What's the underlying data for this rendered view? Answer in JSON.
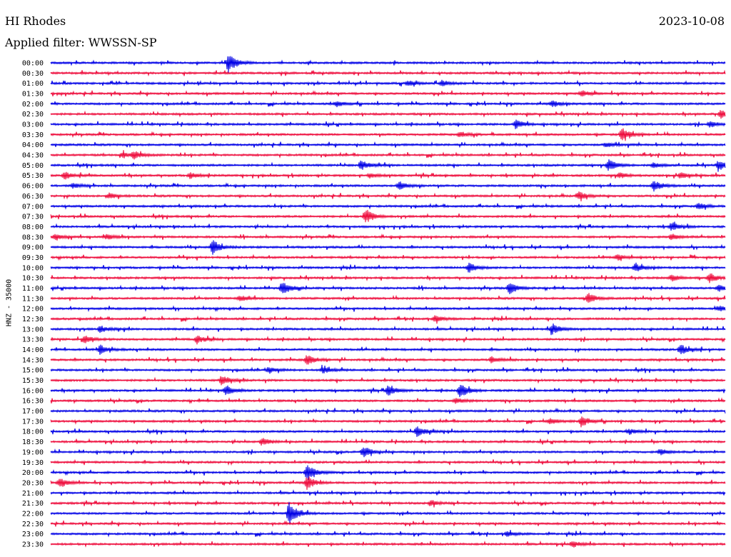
{
  "header": {
    "station": "HI Rhodes",
    "date": "2023-10-08",
    "filter": "Applied filter: WWSSN-SP"
  },
  "colors": {
    "trace_a": "#0000e6",
    "trace_b": "#ee0c3c",
    "background": "#ffffff",
    "text": "#000000"
  },
  "chart_data": {
    "type": "line",
    "subtype": "helicorder",
    "title": "HI Rhodes",
    "date": "2023-10-08",
    "filter": "WWSSN-SP",
    "ylabel": "HNZ - 35000",
    "xlabel": "",
    "line_minutes": 30,
    "color_cycle": [
      "#0000e6",
      "#ee0c3c"
    ],
    "y_ticks": [
      "00:00",
      "00:30",
      "01:00",
      "01:30",
      "02:00",
      "02:30",
      "03:00",
      "03:30",
      "04:00",
      "04:30",
      "05:00",
      "05:30",
      "06:00",
      "06:30",
      "07:00",
      "07:30",
      "08:00",
      "08:30",
      "09:00",
      "09:30",
      "10:00",
      "10:30",
      "11:00",
      "11:30",
      "12:00",
      "12:30",
      "13:00",
      "13:30",
      "14:00",
      "14:30",
      "15:00",
      "15:30",
      "16:00",
      "16:30",
      "17:00",
      "17:30",
      "18:00",
      "18:30",
      "19:00",
      "19:30",
      "20:00",
      "20:30",
      "21:00",
      "21:30",
      "22:00",
      "22:30",
      "23:00",
      "23:30"
    ],
    "series": [
      {
        "start": "00:00",
        "bursts": [
          [
            7.9,
            1.0
          ]
        ]
      },
      {
        "start": "00:30",
        "bursts": []
      },
      {
        "start": "01:00",
        "bursts": [
          [
            15.9,
            0.3
          ],
          [
            17.4,
            0.3
          ]
        ]
      },
      {
        "start": "01:30",
        "bursts": [
          [
            23.6,
            0.3
          ]
        ]
      },
      {
        "start": "02:00",
        "bursts": [
          [
            12.7,
            0.3
          ],
          [
            22.3,
            0.35
          ]
        ]
      },
      {
        "start": "02:30",
        "bursts": [
          [
            29.8,
            0.4
          ]
        ]
      },
      {
        "start": "03:00",
        "bursts": [
          [
            20.7,
            0.45
          ],
          [
            29.3,
            0.3
          ]
        ]
      },
      {
        "start": "03:30",
        "bursts": [
          [
            25.4,
            0.7
          ],
          [
            18.2,
            0.3
          ]
        ]
      },
      {
        "start": "04:00",
        "bursts": [
          [
            24.7,
            0.25
          ]
        ]
      },
      {
        "start": "04:30",
        "bursts": [
          [
            3.7,
            0.4
          ],
          [
            3.2,
            0.25
          ]
        ]
      },
      {
        "start": "05:00",
        "bursts": [
          [
            13.8,
            0.5
          ],
          [
            24.8,
            0.6
          ],
          [
            29.7,
            0.55
          ],
          [
            26.8,
            0.3
          ]
        ]
      },
      {
        "start": "05:30",
        "bursts": [
          [
            0.6,
            0.4
          ],
          [
            6.2,
            0.3
          ],
          [
            14.2,
            0.25
          ],
          [
            25.3,
            0.3
          ],
          [
            28.0,
            0.3
          ]
        ]
      },
      {
        "start": "06:00",
        "bursts": [
          [
            15.5,
            0.45
          ],
          [
            26.8,
            0.6
          ],
          [
            1.0,
            0.3
          ]
        ]
      },
      {
        "start": "06:30",
        "bursts": [
          [
            23.5,
            0.45
          ],
          [
            2.6,
            0.3
          ]
        ]
      },
      {
        "start": "07:00",
        "bursts": [
          [
            28.8,
            0.35
          ]
        ]
      },
      {
        "start": "07:30",
        "bursts": [
          [
            14.0,
            0.8
          ]
        ]
      },
      {
        "start": "08:00",
        "bursts": [
          [
            27.6,
            0.45
          ]
        ]
      },
      {
        "start": "08:30",
        "bursts": [
          [
            0.2,
            0.3
          ],
          [
            2.5,
            0.25
          ],
          [
            27.6,
            0.3
          ]
        ]
      },
      {
        "start": "09:00",
        "bursts": [
          [
            7.2,
            0.75
          ]
        ]
      },
      {
        "start": "09:30",
        "bursts": [
          [
            25.2,
            0.3
          ]
        ]
      },
      {
        "start": "10:00",
        "bursts": [
          [
            18.6,
            0.5
          ],
          [
            26.0,
            0.4
          ]
        ]
      },
      {
        "start": "10:30",
        "bursts": [
          [
            27.6,
            0.35
          ],
          [
            29.3,
            0.5
          ]
        ]
      },
      {
        "start": "11:00",
        "bursts": [
          [
            10.3,
            0.75
          ],
          [
            20.4,
            0.55
          ],
          [
            29.7,
            0.35
          ]
        ]
      },
      {
        "start": "11:30",
        "bursts": [
          [
            8.4,
            0.3
          ],
          [
            23.9,
            0.55
          ]
        ]
      },
      {
        "start": "12:00",
        "bursts": [
          [
            29.7,
            0.3
          ]
        ]
      },
      {
        "start": "12:30",
        "bursts": [
          [
            17.1,
            0.35
          ]
        ]
      },
      {
        "start": "13:00",
        "bursts": [
          [
            2.2,
            0.35
          ],
          [
            22.3,
            0.55
          ]
        ]
      },
      {
        "start": "13:30",
        "bursts": [
          [
            1.5,
            0.4
          ],
          [
            6.5,
            0.45
          ]
        ]
      },
      {
        "start": "14:00",
        "bursts": [
          [
            2.2,
            0.5
          ],
          [
            28.0,
            0.55
          ]
        ]
      },
      {
        "start": "14:30",
        "bursts": [
          [
            11.4,
            0.55
          ],
          [
            19.6,
            0.35
          ]
        ]
      },
      {
        "start": "15:00",
        "bursts": [
          [
            9.7,
            0.35
          ],
          [
            12.1,
            0.4
          ]
        ]
      },
      {
        "start": "15:30",
        "bursts": [
          [
            7.6,
            0.55
          ]
        ]
      },
      {
        "start": "16:00",
        "bursts": [
          [
            7.8,
            0.55
          ],
          [
            15.0,
            0.55
          ],
          [
            18.2,
            0.7
          ]
        ]
      },
      {
        "start": "16:30",
        "bursts": [
          [
            18.0,
            0.3
          ]
        ]
      },
      {
        "start": "17:00",
        "bursts": []
      },
      {
        "start": "17:30",
        "bursts": [
          [
            23.6,
            0.6
          ],
          [
            22.2,
            0.3
          ]
        ]
      },
      {
        "start": "18:00",
        "bursts": [
          [
            16.3,
            0.55
          ],
          [
            25.7,
            0.3
          ]
        ]
      },
      {
        "start": "18:30",
        "bursts": [
          [
            9.4,
            0.4
          ]
        ]
      },
      {
        "start": "19:00",
        "bursts": [
          [
            13.9,
            0.6
          ],
          [
            27.1,
            0.3
          ]
        ]
      },
      {
        "start": "19:30",
        "bursts": []
      },
      {
        "start": "20:00",
        "bursts": [
          [
            11.4,
            0.9
          ]
        ]
      },
      {
        "start": "20:30",
        "bursts": [
          [
            0.4,
            0.55
          ],
          [
            11.4,
            0.75
          ]
        ]
      },
      {
        "start": "21:00",
        "bursts": []
      },
      {
        "start": "21:30",
        "bursts": [
          [
            16.9,
            0.3
          ]
        ]
      },
      {
        "start": "22:00",
        "bursts": [
          [
            10.6,
            1.2
          ]
        ]
      },
      {
        "start": "22:30",
        "bursts": []
      },
      {
        "start": "23:00",
        "bursts": [
          [
            20.3,
            0.25
          ]
        ]
      },
      {
        "start": "23:30",
        "bursts": [
          [
            23.2,
            0.35
          ]
        ]
      }
    ]
  }
}
